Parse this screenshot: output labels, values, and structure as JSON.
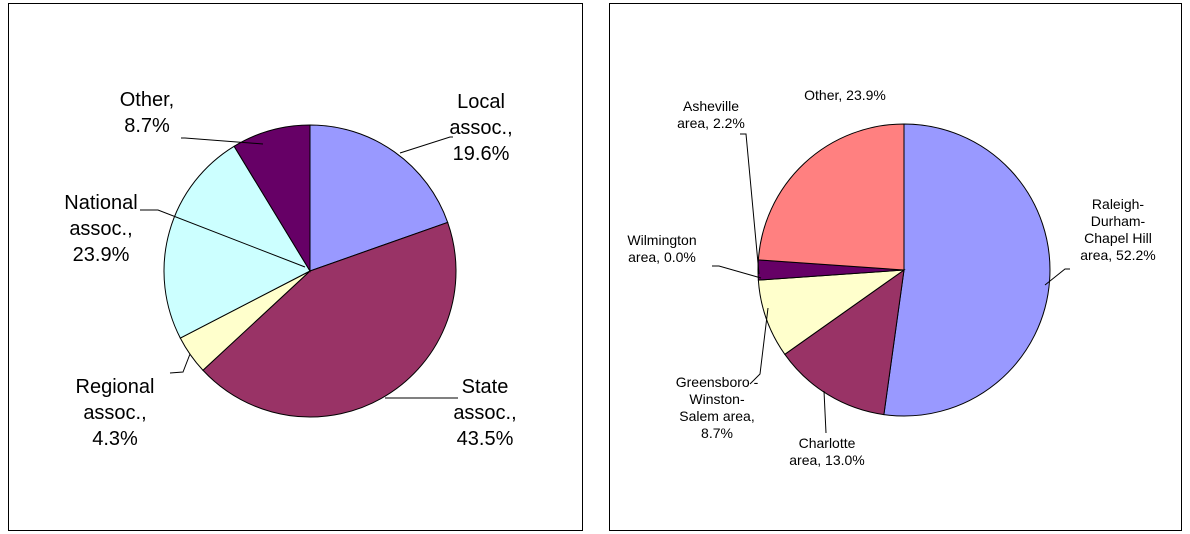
{
  "chart_data": [
    {
      "type": "pie",
      "title": "",
      "slices": [
        {
          "label": [
            "Local",
            "assoc.,",
            "19.6%"
          ],
          "value": 19.6,
          "color": "#9999FF"
        },
        {
          "label": [
            "State",
            "assoc.,",
            "43.5%"
          ],
          "value": 43.5,
          "color": "#993366"
        },
        {
          "label": [
            "Regional",
            "assoc.,",
            "4.3%"
          ],
          "value": 4.3,
          "color": "#FFFFCC"
        },
        {
          "label": [
            "National",
            "assoc.,",
            "23.9%"
          ],
          "value": 23.9,
          "color": "#CCFFFF"
        },
        {
          "label": [
            "Other,",
            "8.7%"
          ],
          "value": 8.7,
          "color": "#660066"
        }
      ]
    },
    {
      "type": "pie",
      "title": "",
      "slices": [
        {
          "label": [
            "Raleigh-",
            "Durham-",
            "Chapel Hill",
            "area, 52.2%"
          ],
          "value": 52.2,
          "color": "#9999FF"
        },
        {
          "label": [
            "Charlotte",
            "area, 13.0%"
          ],
          "value": 13.0,
          "color": "#993366"
        },
        {
          "label": [
            "Greensboro -",
            "Winston-",
            "Salem area,",
            "8.7%"
          ],
          "value": 8.7,
          "color": "#FFFFCC"
        },
        {
          "label": [
            "Wilmington",
            "area, 0.0%"
          ],
          "value": 0.0,
          "color": "#CCFFFF"
        },
        {
          "label": [
            "Asheville",
            "area, 2.2%"
          ],
          "value": 2.2,
          "color": "#660066"
        },
        {
          "label": [
            "Other, 23.9%"
          ],
          "value": 23.9,
          "color": "#FF8080"
        }
      ]
    }
  ]
}
